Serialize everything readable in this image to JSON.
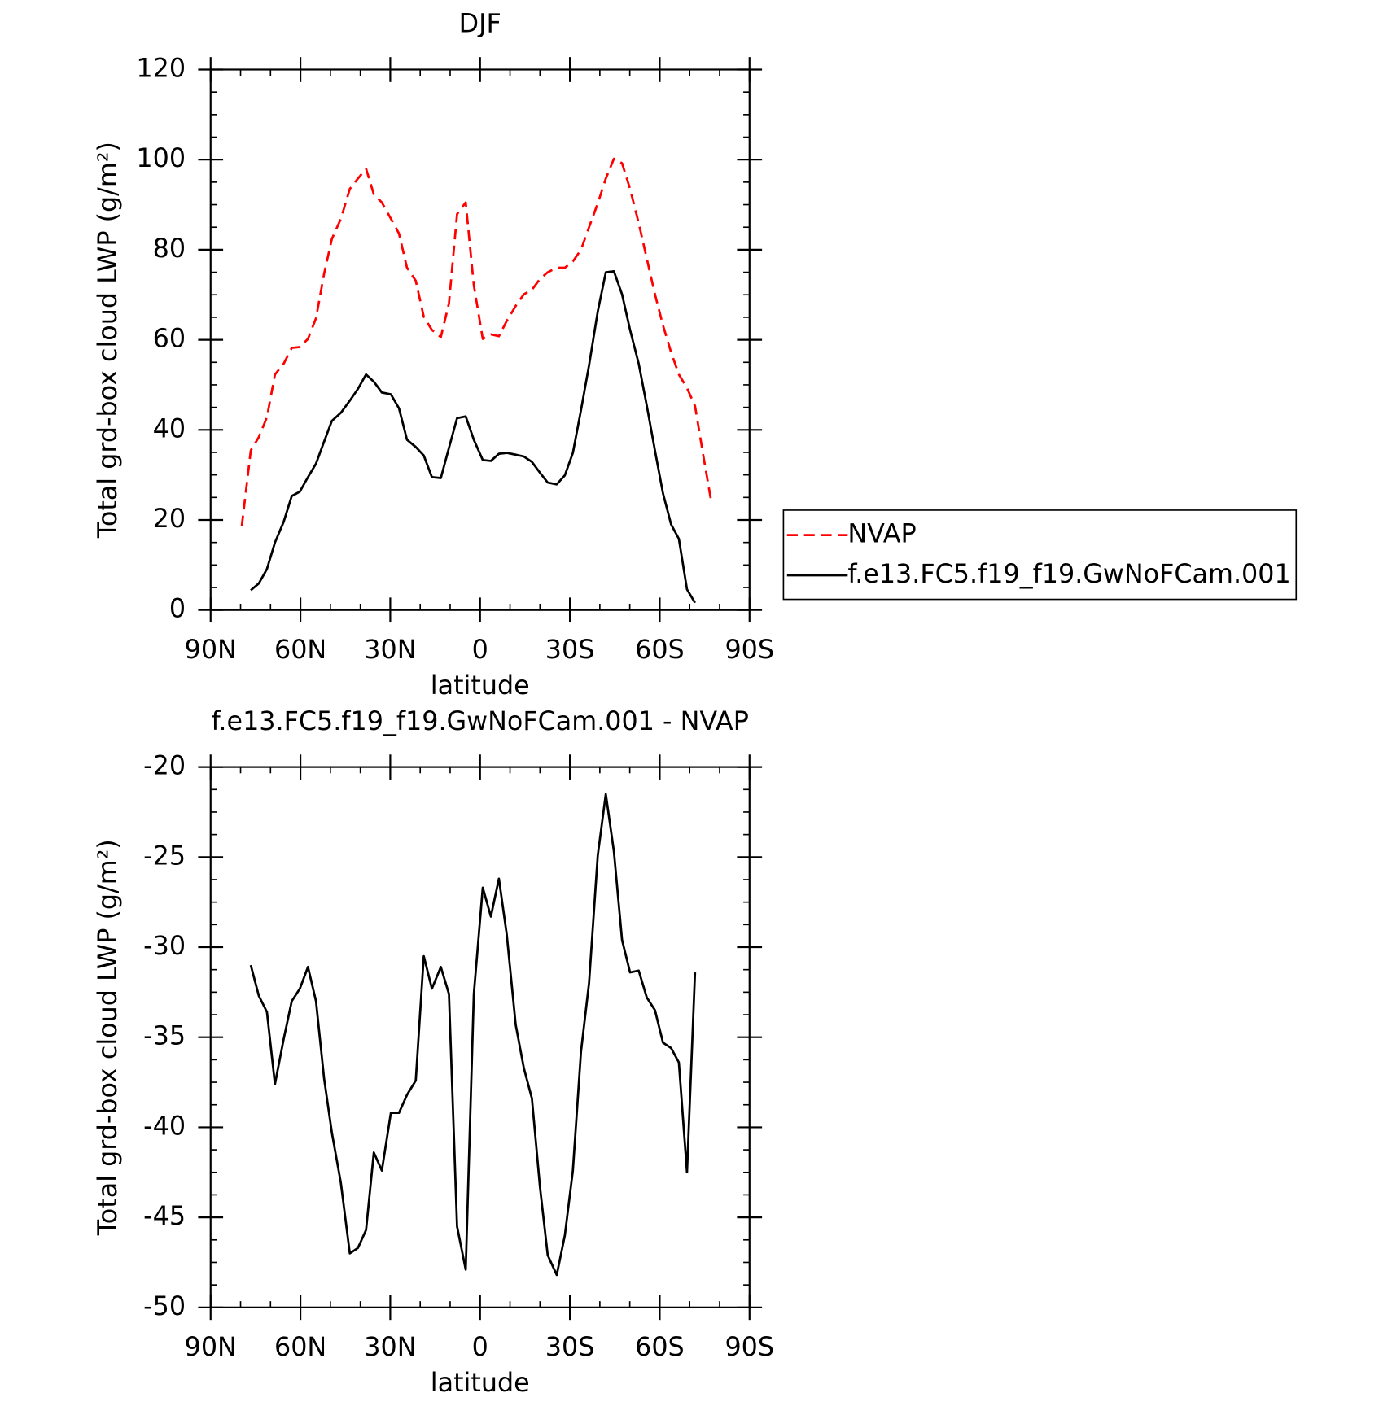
{
  "chart_data": [
    {
      "type": "line",
      "title": "DJF",
      "x_label": "latitude",
      "y_label": "Total grd-box cloud LWP (g/m²)",
      "x": [
        79.6,
        76.6,
        73.9,
        71.2,
        68.5,
        65.6,
        62.9,
        60.2,
        57.5,
        54.8,
        52.1,
        49.5,
        46.5,
        43.5,
        40.8,
        38.1,
        35.5,
        32.8,
        29.8,
        27.1,
        24.4,
        21.5,
        18.8,
        16.1,
        13.1,
        10.4,
        7.7,
        4.8,
        2.1,
        -0.9,
        -3.6,
        -6.3,
        -8.9,
        -11.9,
        -14.6,
        -17.3,
        -20.0,
        -22.6,
        -25.6,
        -28.3,
        -31.0,
        -33.7,
        -36.4,
        -39.3,
        -42.0,
        -44.7,
        -47.4,
        -50.1,
        -53.0,
        -55.7,
        -58.4,
        -61.1,
        -63.8,
        -66.4,
        -69.1,
        -71.8,
        -74.5,
        -77.2
      ],
      "xlim": [
        90,
        -90
      ],
      "xticks": [
        {
          "value": 90,
          "label": "90N"
        },
        {
          "value": 60,
          "label": "60N"
        },
        {
          "value": 30,
          "label": "30N"
        },
        0,
        {
          "value": -30,
          "label": "30S"
        },
        {
          "value": -60,
          "label": "60S"
        },
        {
          "value": -90,
          "label": "90S"
        }
      ],
      "ylim": [
        0,
        120
      ],
      "yticks": [
        0,
        20,
        40,
        60,
        80,
        100,
        120
      ],
      "legend": "right",
      "series": [
        {
          "name": "NVAP",
          "color": "#ff0000",
          "dash": "dashed",
          "values": [
            18.6,
            35.4,
            38.4,
            42.8,
            52.3,
            54.7,
            58.2,
            58.4,
            60.2,
            64.8,
            74.7,
            82.4,
            86.9,
            93.5,
            95.8,
            98.0,
            92.3,
            90.5,
            86.9,
            83.6,
            76.0,
            73.1,
            65.1,
            62.2,
            60.6,
            68.1,
            87.9,
            90.5,
            72.1,
            60.2,
            61.2,
            60.8,
            64.2,
            67.5,
            70.1,
            71.1,
            73.5,
            75.0,
            76.0,
            76.0,
            77.4,
            80.0,
            85.0,
            90.3,
            95.8,
            100.2,
            99.2,
            93.5,
            85.9,
            78.0,
            70.1,
            63.2,
            57.2,
            52.3,
            49.3,
            45.3,
            34.5,
            24.2
          ]
        },
        {
          "name": "f.e13.FC5.f19_f19.GwNoFCam.001",
          "color": "#000000",
          "values": [
            null,
            4.4,
            5.9,
            9.1,
            15.0,
            19.6,
            25.3,
            26.3,
            29.5,
            32.5,
            37.4,
            42.0,
            43.8,
            46.5,
            49.1,
            52.3,
            50.7,
            48.3,
            47.9,
            44.8,
            37.8,
            36.2,
            34.3,
            29.5,
            29.3,
            36.0,
            42.6,
            43.0,
            37.8,
            33.3,
            33.1,
            34.7,
            34.9,
            34.5,
            34.1,
            32.9,
            30.5,
            28.3,
            27.9,
            29.9,
            34.9,
            44.4,
            54.3,
            66.3,
            75.0,
            75.2,
            70.1,
            62.2,
            54.7,
            45.3,
            35.4,
            25.9,
            19.0,
            15.8,
            4.6,
            1.6,
            null,
            null
          ]
        }
      ]
    },
    {
      "type": "line",
      "title": "f.e13.FC5.f19_f19.GwNoFCam.001 - NVAP",
      "x_label": "latitude",
      "y_label": "Total grd-box cloud LWP (g/m²)",
      "x": [
        79.6,
        76.6,
        73.9,
        71.2,
        68.5,
        65.6,
        62.9,
        60.2,
        57.5,
        54.8,
        52.1,
        49.5,
        46.5,
        43.5,
        40.8,
        38.1,
        35.5,
        32.8,
        29.8,
        27.1,
        24.4,
        21.5,
        18.8,
        16.1,
        13.1,
        10.4,
        7.7,
        4.8,
        2.1,
        -0.9,
        -3.6,
        -6.3,
        -8.9,
        -11.9,
        -14.6,
        -17.3,
        -20.0,
        -22.6,
        -25.6,
        -28.3,
        -31.0,
        -33.7,
        -36.4,
        -39.3,
        -42.0,
        -44.7,
        -47.4,
        -50.1,
        -53.0,
        -55.7,
        -58.4,
        -61.1,
        -63.8,
        -66.4,
        -69.1,
        -71.8,
        -74.5,
        -77.2
      ],
      "xlim": [
        90,
        -90
      ],
      "xticks": [
        {
          "value": 90,
          "label": "90N"
        },
        {
          "value": 60,
          "label": "60N"
        },
        {
          "value": 30,
          "label": "30N"
        },
        0,
        {
          "value": -30,
          "label": "30S"
        },
        {
          "value": -60,
          "label": "60S"
        },
        {
          "value": -90,
          "label": "90S"
        }
      ],
      "ylim": [
        -50,
        -20
      ],
      "yticks": [
        -50,
        -45,
        -40,
        -35,
        -30,
        -25,
        -20
      ],
      "series": [
        {
          "color": "#000000",
          "values": [
            null,
            -31.0,
            -32.7,
            -33.6,
            -37.6,
            -35.1,
            -33.0,
            -32.3,
            -31.1,
            -33.0,
            -37.3,
            -40.3,
            -43.1,
            -47.0,
            -46.7,
            -45.7,
            -41.4,
            -42.4,
            -39.2,
            -39.2,
            -38.2,
            -37.4,
            -30.5,
            -32.3,
            -31.1,
            -32.6,
            -45.5,
            -47.9,
            -32.6,
            -26.7,
            -28.3,
            -26.2,
            -29.3,
            -34.3,
            -36.7,
            -38.4,
            -43.3,
            -47.1,
            -48.2,
            -46.0,
            -42.4,
            -35.8,
            -32.0,
            -24.9,
            -21.5,
            -24.7,
            -29.6,
            -31.4,
            -31.3,
            -32.8,
            -33.5,
            -35.3,
            -35.6,
            -36.4,
            -42.5,
            -31.4,
            null,
            null
          ]
        }
      ]
    }
  ]
}
